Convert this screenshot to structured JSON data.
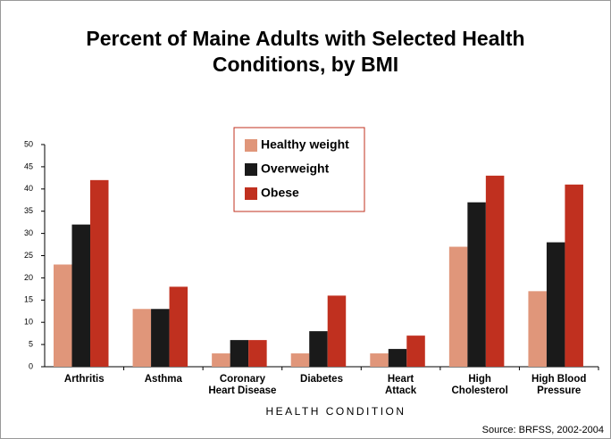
{
  "chart_data": {
    "type": "bar",
    "title_lines": [
      "Percent of Maine Adults with Selected Health",
      "Conditions, by BMI"
    ],
    "xlabel": "HEALTH CONDITION",
    "source": "Source: BRFSS, 2002-2004",
    "categories": [
      [
        "Arthritis"
      ],
      [
        "Asthma"
      ],
      [
        "Coronary",
        "Heart Disease"
      ],
      [
        "Diabetes"
      ],
      [
        "Heart",
        "Attack"
      ],
      [
        "High",
        "Cholesterol"
      ],
      [
        "High Blood",
        "Pressure"
      ]
    ],
    "series": [
      {
        "name": "Healthy weight",
        "color": "#e0967a",
        "values": [
          23,
          13,
          3,
          3,
          3,
          27,
          17
        ]
      },
      {
        "name": "Overweight",
        "color": "#1a1a1a",
        "values": [
          32,
          13,
          6,
          8,
          4,
          37,
          28
        ]
      },
      {
        "name": "Obese",
        "color": "#c0301f",
        "values": [
          42,
          18,
          6,
          16,
          7,
          43,
          41
        ]
      }
    ],
    "ylim": [
      0,
      50
    ],
    "yticks": [
      0,
      5,
      10,
      15,
      20,
      25,
      30,
      35,
      40,
      45,
      50
    ]
  }
}
